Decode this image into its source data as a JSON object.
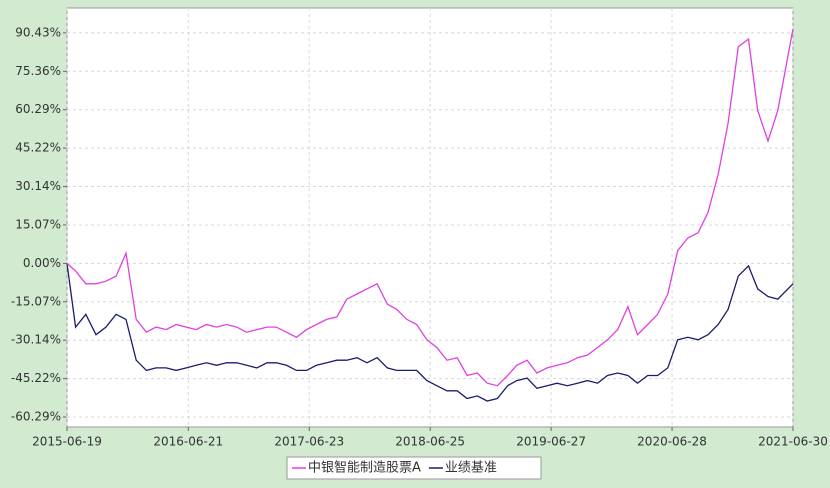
{
  "chart_data": {
    "type": "line",
    "x": [
      "2015-06-19",
      "2015-07-15",
      "2015-08-15",
      "2015-09-15",
      "2015-10-15",
      "2015-11-15",
      "2015-12-15",
      "2016-01-15",
      "2016-02-15",
      "2016-03-15",
      "2016-04-15",
      "2016-05-15",
      "2016-06-15",
      "2016-07-15",
      "2016-08-15",
      "2016-09-15",
      "2016-10-15",
      "2016-11-15",
      "2016-12-15",
      "2017-01-15",
      "2017-02-15",
      "2017-03-15",
      "2017-04-15",
      "2017-05-15",
      "2017-06-15",
      "2017-07-15",
      "2017-08-15",
      "2017-09-15",
      "2017-10-15",
      "2017-11-15",
      "2017-12-15",
      "2018-01-15",
      "2018-02-15",
      "2018-03-15",
      "2018-04-15",
      "2018-05-15",
      "2018-06-15",
      "2018-07-15",
      "2018-08-15",
      "2018-09-15",
      "2018-10-15",
      "2018-11-15",
      "2018-12-15",
      "2019-01-15",
      "2019-02-15",
      "2019-03-15",
      "2019-04-15",
      "2019-05-15",
      "2019-06-15",
      "2019-07-15",
      "2019-08-15",
      "2019-09-15",
      "2019-10-15",
      "2019-11-15",
      "2019-12-15",
      "2020-01-15",
      "2020-02-15",
      "2020-03-15",
      "2020-04-15",
      "2020-05-15",
      "2020-06-15",
      "2020-07-15",
      "2020-08-15",
      "2020-09-15",
      "2020-10-15",
      "2020-11-15",
      "2020-12-15",
      "2021-01-15",
      "2021-02-15",
      "2021-03-15",
      "2021-04-15",
      "2021-05-15",
      "2021-06-30"
    ],
    "series": [
      {
        "name": "中银智能制造股票A",
        "color": "#e040e0",
        "values": [
          0,
          -3,
          -8,
          -8,
          -7,
          -5,
          4,
          -22,
          -27,
          -25,
          -26,
          -24,
          -25,
          -26,
          -24,
          -25,
          -24,
          -25,
          -27,
          -26,
          -25,
          -25,
          -27,
          -29,
          -26,
          -24,
          -22,
          -21,
          -14,
          -12,
          -10,
          -8,
          -16,
          -18,
          -22,
          -24,
          -30,
          -33,
          -38,
          -37,
          -44,
          -43,
          -47,
          -48,
          -44,
          -40,
          -38,
          -43,
          -41,
          -40,
          -39,
          -37,
          -36,
          -33,
          -30,
          -26,
          -17,
          -28,
          -24,
          -20,
          -12,
          5,
          10,
          12,
          20,
          35,
          55,
          85,
          88,
          60,
          48,
          60,
          92
        ]
      },
      {
        "name": "业绩基准",
        "color": "#1c1c6e",
        "values": [
          0,
          -25,
          -20,
          -28,
          -25,
          -20,
          -22,
          -38,
          -42,
          -41,
          -41,
          -42,
          -41,
          -40,
          -39,
          -40,
          -39,
          -39,
          -40,
          -41,
          -39,
          -39,
          -40,
          -42,
          -42,
          -40,
          -39,
          -38,
          -38,
          -37,
          -39,
          -37,
          -41,
          -42,
          -42,
          -42,
          -46,
          -48,
          -50,
          -50,
          -53,
          -52,
          -54,
          -53,
          -48,
          -46,
          -45,
          -49,
          -48,
          -47,
          -48,
          -47,
          -46,
          -47,
          -44,
          -43,
          -44,
          -47,
          -44,
          -44,
          -41,
          -30,
          -29,
          -30,
          -28,
          -24,
          -18,
          -5,
          -1,
          -10,
          -13,
          -14,
          -8
        ]
      }
    ],
    "xlim": [
      "2015-06-19",
      "2021-06-30"
    ],
    "xticks": [
      "2015-06-19",
      "2016-06-21",
      "2017-06-23",
      "2018-06-25",
      "2019-06-27",
      "2020-06-28",
      "2021-06-30"
    ],
    "ylim": [
      -64.2,
      100.2
    ],
    "yticks": [
      {
        "value": 90.43,
        "label": "90.43%"
      },
      {
        "value": 75.36,
        "label": "75.36%"
      },
      {
        "value": 60.29,
        "label": "60.29%"
      },
      {
        "value": 45.22,
        "label": "45.22%"
      },
      {
        "value": 30.14,
        "label": "30.14%"
      },
      {
        "value": 15.07,
        "label": "15.07%"
      },
      {
        "value": 0,
        "label": "0.00%"
      },
      {
        "value": -15.07,
        "label": "-15.07%"
      },
      {
        "value": -30.14,
        "label": "-30.14%"
      },
      {
        "value": -45.22,
        "label": "-45.22%"
      },
      {
        "value": -60.29,
        "label": "-60.29%"
      }
    ],
    "grid": true
  }
}
